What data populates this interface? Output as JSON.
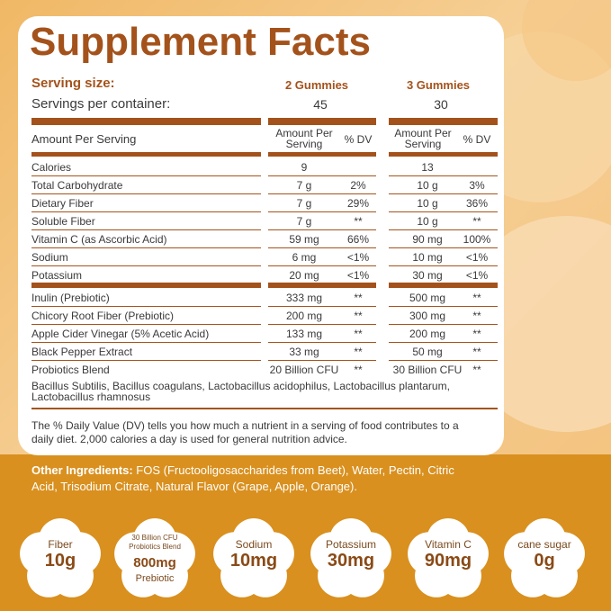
{
  "title": "Supplement Facts",
  "serving": {
    "label": "Serving size:",
    "col1": "2 Gummies",
    "col2": "3 Gummies"
  },
  "servings_per_container": {
    "label": "Servings per container:",
    "col1": "45",
    "col2": "30"
  },
  "header": {
    "label": "Amount Per Serving",
    "amount1": "Amount Per Serving",
    "dv1": "% DV",
    "amount2": "Amount Per Serving",
    "dv2": "% DV"
  },
  "groups": [
    [
      [
        "Calories",
        "9",
        null,
        "13",
        null
      ],
      [
        "Total Carbohydrate",
        "7 g",
        "2%",
        "10 g",
        "3%"
      ],
      [
        "Dietary Fiber",
        "7 g",
        "29%",
        "10 g",
        "36%"
      ],
      [
        "Soluble Fiber",
        "7 g",
        "**",
        "10 g",
        "**"
      ],
      [
        "Vitamin C (as Ascorbic Acid)",
        "59 mg",
        "66%",
        "90 mg",
        "100%"
      ],
      [
        "Sodium",
        "6 mg",
        "<1%",
        "10 mg",
        "<1%"
      ],
      [
        "Potassium",
        "20 mg",
        "<1%",
        "30 mg",
        "<1%"
      ]
    ],
    [
      [
        "Inulin (Prebiotic)",
        "333 mg",
        "**",
        "500 mg",
        "**"
      ],
      [
        "Chicory Root Fiber (Prebiotic)",
        "200 mg",
        "**",
        "300 mg",
        "**"
      ],
      [
        "Apple Cider Vinegar (5% Acetic Acid)",
        "133 mg",
        "**",
        "200 mg",
        "**"
      ],
      [
        "Black Pepper Extract",
        "33 mg",
        "**",
        "50 mg",
        "**"
      ],
      [
        "Probiotics Blend",
        "20 Billion CFU",
        "**",
        "30 Billion CFU",
        "**"
      ]
    ]
  ],
  "blend_ingredients": [
    "Bacillus Subtilis, Bacillus coagulans, Lactobacillus acidophilus, Lactobacillus plantarum,",
    "Lactobacillus rhamnosus"
  ],
  "footnote": [
    "The % Daily Value (DV) tells you how much a nutrient in a serving of food contributes to a",
    "daily diet. 2,000 calories a day is used for general nutrition advice."
  ],
  "other_ingredients": {
    "label": "Other Ingredients:",
    "lines": [
      " FOS (Fructooligosaccharides from Beet), Water, Pectin, Citric",
      "Acid, Trisodium Citrate, Natural Flavor (Grape, Apple, Orange)."
    ]
  },
  "badges": [
    {
      "top": [
        "Fiber"
      ],
      "value": "10g"
    },
    {
      "top": [
        "30 Billion CFU",
        "Probiotics Blend"
      ],
      "value": "800mg",
      "bottom": "Prebiotic"
    },
    {
      "top": [
        "Sodium"
      ],
      "value": "10mg"
    },
    {
      "top": [
        "Potassium"
      ],
      "value": "30mg"
    },
    {
      "top": [
        "Vitamin C"
      ],
      "value": "90mg"
    },
    {
      "top": [
        "cane sugar"
      ],
      "value": "0g"
    }
  ]
}
